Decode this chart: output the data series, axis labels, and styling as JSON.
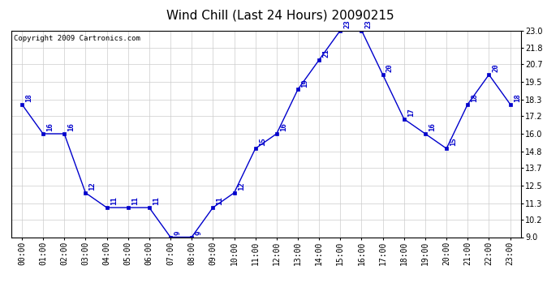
{
  "title": "Wind Chill (Last 24 Hours) 20090215",
  "copyright": "Copyright 2009 Cartronics.com",
  "x_labels": [
    "00:00",
    "01:00",
    "02:00",
    "03:00",
    "04:00",
    "05:00",
    "06:00",
    "07:00",
    "08:00",
    "09:00",
    "10:00",
    "11:00",
    "12:00",
    "13:00",
    "14:00",
    "15:00",
    "16:00",
    "17:00",
    "18:00",
    "19:00",
    "20:00",
    "21:00",
    "22:00",
    "23:00"
  ],
  "y_values": [
    18,
    16,
    16,
    12,
    11,
    11,
    11,
    9,
    9,
    11,
    12,
    15,
    16,
    19,
    21,
    23,
    23,
    20,
    17,
    16,
    15,
    18,
    20,
    18
  ],
  "point_labels": [
    "18",
    "16",
    "16",
    "12",
    "11",
    "11",
    "11",
    "9",
    "9",
    "11",
    "12",
    "15",
    "16",
    "19",
    "21",
    "23",
    "23",
    "20",
    "17",
    "16",
    "15",
    "18",
    "20",
    "18"
  ],
  "ylim_min": 9.0,
  "ylim_max": 23.0,
  "yticks": [
    9.0,
    10.2,
    11.3,
    12.5,
    13.7,
    14.8,
    16.0,
    17.2,
    18.3,
    19.5,
    20.7,
    21.8,
    23.0
  ],
  "line_color": "#0000CC",
  "marker_color": "#0000CC",
  "bg_color": "#ffffff",
  "plot_bg_color": "#ffffff",
  "grid_color": "#cccccc",
  "title_fontsize": 11,
  "label_fontsize": 6.5,
  "tick_fontsize": 7,
  "copyright_fontsize": 6.5
}
